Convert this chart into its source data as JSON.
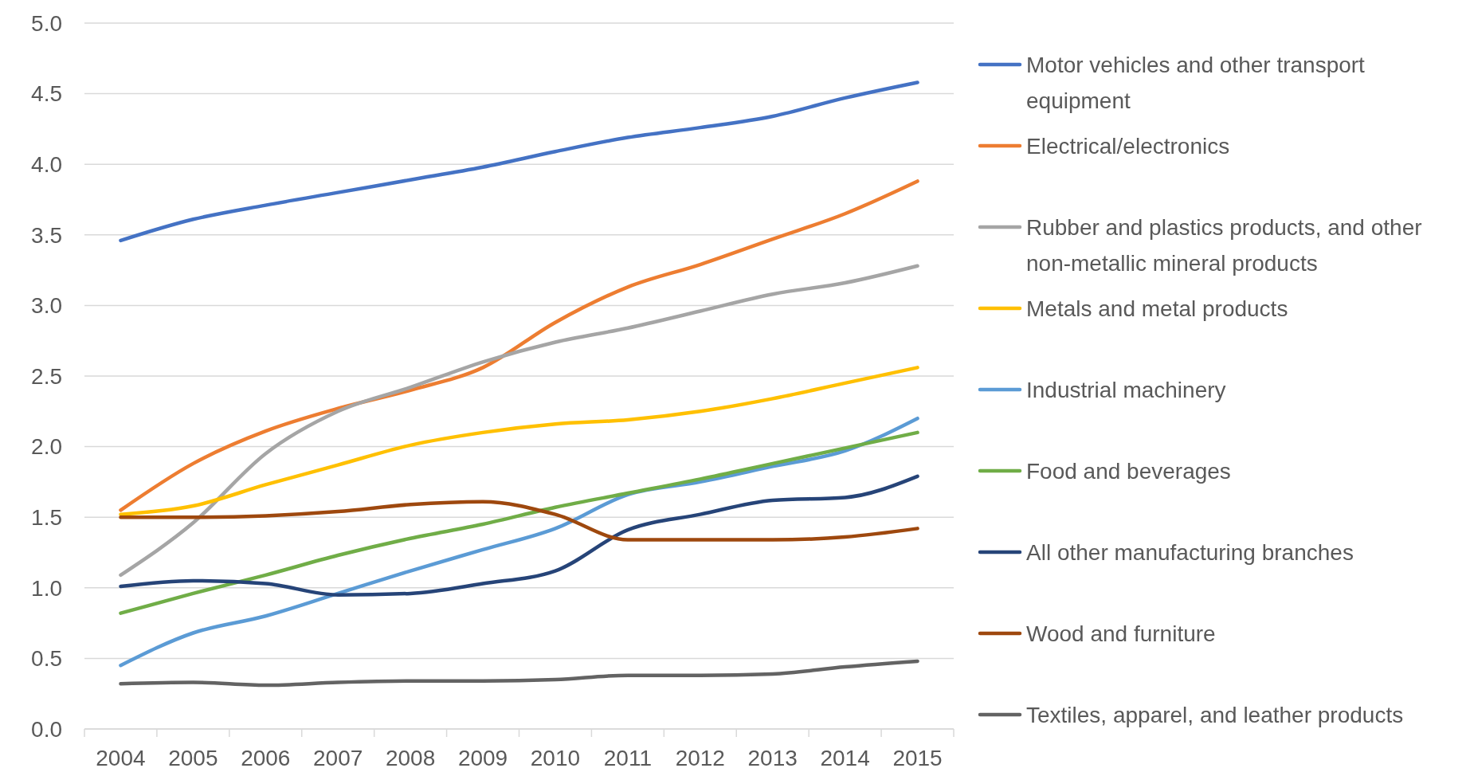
{
  "chart_data": {
    "type": "line",
    "categories": [
      "2004",
      "2005",
      "2006",
      "2007",
      "2008",
      "2009",
      "2010",
      "2011",
      "2012",
      "2013",
      "2014",
      "2015"
    ],
    "ylim": [
      0,
      5
    ],
    "yticks": [
      {
        "value": 0,
        "label": "0.0"
      },
      {
        "value": 0.5,
        "label": "0.5"
      },
      {
        "value": 1,
        "label": "1.0"
      },
      {
        "value": 1.5,
        "label": "1.5"
      },
      {
        "value": 2,
        "label": "2.0"
      },
      {
        "value": 2.5,
        "label": "2.5"
      },
      {
        "value": 3,
        "label": "3.0"
      },
      {
        "value": 3.5,
        "label": "3.5"
      },
      {
        "value": 4,
        "label": "4.0"
      },
      {
        "value": 4.5,
        "label": "4.5"
      },
      {
        "value": 5,
        "label": "5.0"
      }
    ],
    "grid": "y",
    "legend": "right",
    "marker": "none",
    "line_style": "solid",
    "series": [
      {
        "name": "Motor vehicles and other transport equipment",
        "color": "#4472c4",
        "values": [
          3.46,
          3.61,
          3.71,
          3.8,
          3.89,
          3.98,
          4.09,
          4.19,
          4.26,
          4.34,
          4.47,
          4.58
        ]
      },
      {
        "name": "Electrical/electronics",
        "color": "#ed7d31",
        "values": [
          1.55,
          1.88,
          2.11,
          2.27,
          2.4,
          2.56,
          2.88,
          3.13,
          3.29,
          3.47,
          3.65,
          3.88
        ]
      },
      {
        "name": "Rubber and plastics products, and other non-metallic mineral products",
        "color": "#a5a5a5",
        "values": [
          1.09,
          1.46,
          1.95,
          2.25,
          2.42,
          2.6,
          2.74,
          2.84,
          2.96,
          3.08,
          3.16,
          3.28
        ]
      },
      {
        "name": "Metals and metal products",
        "color": "#ffc000",
        "values": [
          1.52,
          1.58,
          1.73,
          1.87,
          2.01,
          2.1,
          2.16,
          2.19,
          2.25,
          2.34,
          2.45,
          2.56
        ]
      },
      {
        "name": "Industrial machinery",
        "color": "#5b9bd5",
        "values": [
          0.45,
          0.68,
          0.8,
          0.96,
          1.12,
          1.27,
          1.42,
          1.66,
          1.75,
          1.86,
          1.97,
          2.2
        ]
      },
      {
        "name": "Food and beverages",
        "color": "#70ad47",
        "values": [
          0.82,
          0.96,
          1.09,
          1.23,
          1.35,
          1.45,
          1.57,
          1.67,
          1.77,
          1.88,
          1.99,
          2.1
        ]
      },
      {
        "name": "All other manufacturing branches",
        "color": "#264478",
        "values": [
          1.01,
          1.05,
          1.03,
          0.95,
          0.96,
          1.03,
          1.12,
          1.41,
          1.52,
          1.62,
          1.64,
          1.79
        ]
      },
      {
        "name": "Wood and furniture",
        "color": "#9e480e",
        "values": [
          1.5,
          1.5,
          1.51,
          1.54,
          1.59,
          1.61,
          1.52,
          1.34,
          1.34,
          1.34,
          1.36,
          1.42
        ]
      },
      {
        "name": "Textiles, apparel, and leather products",
        "color": "#636363",
        "values": [
          0.32,
          0.33,
          0.31,
          0.33,
          0.34,
          0.34,
          0.35,
          0.38,
          0.38,
          0.39,
          0.44,
          0.48
        ]
      }
    ]
  }
}
